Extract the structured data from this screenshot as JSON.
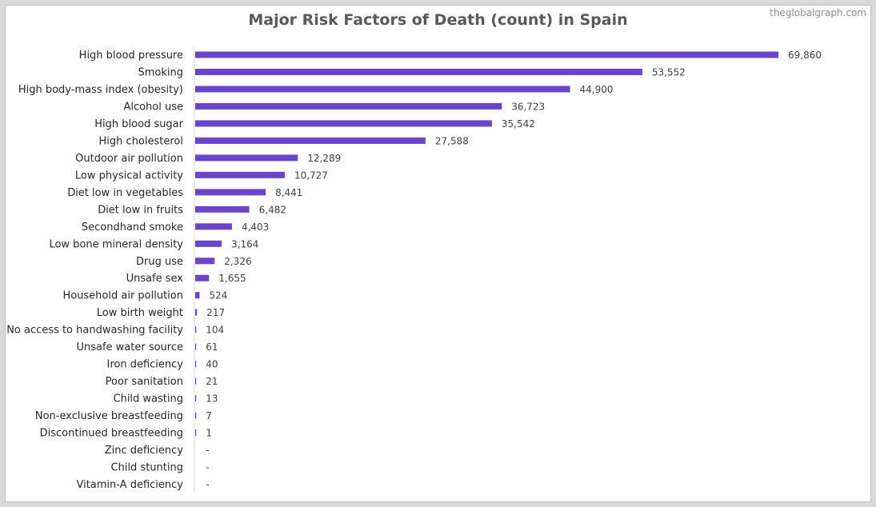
{
  "watermark": "theglobalgraph.com",
  "colors": {
    "bar": "#6a45c9",
    "axis": "#d9d9d9",
    "border": "#d9d9d9"
  },
  "chart_data": {
    "type": "bar",
    "orientation": "horizontal",
    "title": "Major Risk Factors of Death (count) in Spain",
    "xlabel": "",
    "ylabel": "",
    "grid": false,
    "legend": "none",
    "xlim": [
      0,
      70000
    ],
    "categories": [
      "High blood pressure",
      "Smoking",
      "High body-mass index (obesity)",
      "Alcohol use",
      "High blood sugar",
      "High cholesterol",
      "Outdoor air pollution",
      "Low physical activity",
      "Diet low in vegetables",
      "Diet low in fruits",
      "Secondhand smoke",
      "Low bone mineral density",
      "Drug use",
      "Unsafe sex",
      "Household air pollution",
      "Low birth weight",
      "No access to handwashing facility",
      "Unsafe water source",
      "Iron deficiency",
      "Poor sanitation",
      "Child wasting",
      "Non-exclusive breastfeeding",
      "Discontinued breastfeeding",
      "Zinc deficiency",
      "Child stunting",
      "Vitamin-A deficiency"
    ],
    "values": [
      69860,
      53552,
      44900,
      36723,
      35542,
      27588,
      12289,
      10727,
      8441,
      6482,
      4403,
      3164,
      2326,
      1655,
      524,
      217,
      104,
      61,
      40,
      21,
      13,
      7,
      1,
      0,
      0,
      0
    ],
    "value_labels": [
      "69,860",
      "53,552",
      "44,900",
      "36,723",
      "35,542",
      "27,588",
      "12,289",
      "10,727",
      "8,441",
      "6,482",
      "4,403",
      "3,164",
      "2,326",
      "1,655",
      "524",
      "217",
      "104",
      "61",
      "40",
      "21",
      "13",
      "7",
      "1",
      "-",
      "-",
      "-"
    ]
  }
}
